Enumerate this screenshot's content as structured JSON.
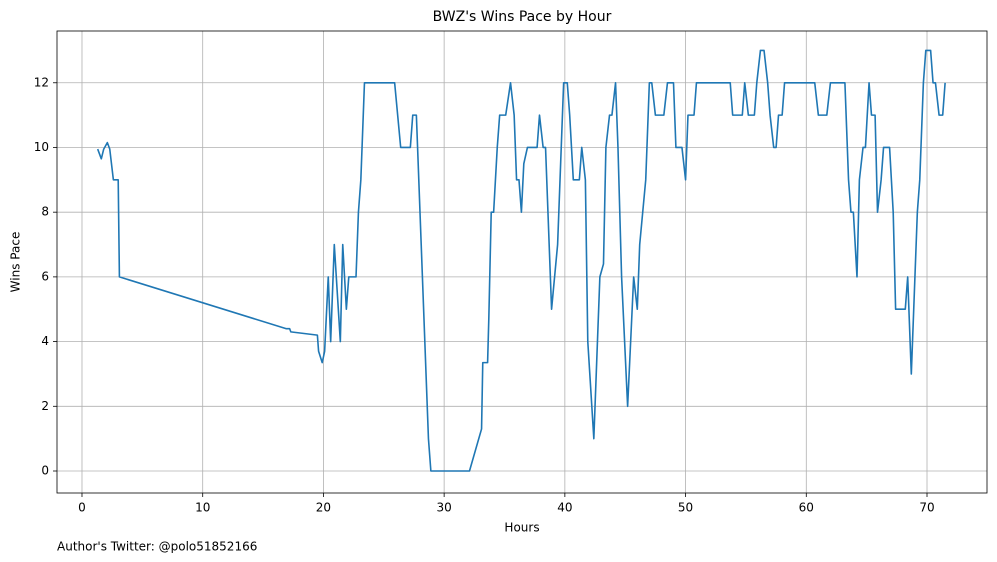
{
  "chart_data": {
    "type": "line",
    "title": "BWZ's Wins Pace by Hour",
    "x_label": "Hours",
    "y_label": "Wins Pace",
    "footnote": "Author's Twitter: @polo51852166",
    "xlim": [
      -2.07,
      74.97
    ],
    "ylim": [
      -0.68,
      13.6
    ],
    "xticks": [
      0,
      10,
      20,
      30,
      40,
      50,
      60,
      70
    ],
    "yticks": [
      0,
      2,
      4,
      6,
      8,
      10,
      12
    ],
    "grid": true,
    "series": [
      {
        "name": "Wins Pace",
        "color": "#1f77b4",
        "x": [
          1.3,
          1.6,
          1.8,
          2.1,
          2.3,
          2.6,
          3.0,
          3.1,
          16.9,
          17.2,
          17.3,
          19.5,
          19.6,
          19.9,
          20.1,
          20.4,
          20.6,
          20.9,
          21.4,
          21.6,
          21.9,
          22.1,
          22.7,
          22.9,
          23.1,
          23.4,
          25.9,
          26.4,
          27.2,
          27.4,
          27.7,
          28.1,
          28.7,
          28.9,
          32.1,
          33.1,
          33.2,
          33.6,
          33.7,
          33.9,
          34.1,
          34.4,
          34.6,
          35.1,
          35.5,
          35.8,
          36.0,
          36.2,
          36.4,
          36.6,
          36.9,
          37.7,
          37.9,
          38.2,
          38.4,
          38.6,
          38.9,
          39.4,
          39.9,
          40.2,
          40.4,
          40.7,
          41.2,
          41.4,
          41.7,
          41.9,
          42.4,
          42.9,
          43.2,
          43.4,
          43.7,
          43.9,
          44.2,
          44.4,
          44.7,
          45.2,
          45.7,
          46.0,
          46.2,
          46.7,
          47.0,
          47.2,
          47.5,
          48.2,
          48.5,
          49.0,
          49.2,
          49.7,
          50.0,
          50.2,
          50.7,
          50.9,
          53.7,
          53.9,
          54.7,
          54.9,
          55.2,
          55.7,
          55.9,
          56.2,
          56.5,
          56.8,
          57.0,
          57.3,
          57.5,
          57.7,
          58.0,
          58.2,
          60.7,
          61.0,
          61.7,
          62.0,
          63.2,
          63.5,
          63.7,
          63.9,
          64.2,
          64.4,
          64.7,
          64.9,
          65.2,
          65.4,
          65.7,
          65.9,
          66.2,
          66.4,
          66.9,
          67.2,
          67.4,
          68.2,
          68.4,
          68.7,
          68.9,
          69.2,
          69.4,
          69.7,
          69.9,
          70.3,
          70.5,
          70.7,
          71.0,
          71.3,
          71.5
        ],
        "values": [
          9.95,
          9.65,
          9.95,
          10.15,
          9.95,
          9.0,
          9.0,
          6.0,
          4.4,
          4.4,
          4.3,
          4.2,
          3.7,
          3.35,
          3.7,
          6.0,
          4.0,
          7.0,
          4.0,
          7.0,
          5.0,
          6.0,
          6.0,
          8.0,
          9.0,
          12.0,
          12.0,
          10.0,
          10.0,
          11.0,
          11.0,
          7.0,
          1.0,
          0,
          0,
          1.3,
          3.35,
          3.35,
          4.7,
          8.0,
          8.0,
          10.0,
          11.0,
          11.0,
          12.0,
          11.0,
          9.0,
          9.0,
          8.0,
          9.5,
          10.0,
          10.0,
          11.0,
          10.0,
          10.0,
          8.0,
          5.0,
          7.0,
          12.0,
          12.0,
          11.0,
          9.0,
          9.0,
          10.0,
          9.0,
          4.0,
          1.0,
          6.0,
          6.4,
          10.0,
          11.0,
          11.0,
          12.0,
          10.0,
          6.0,
          2.0,
          6.0,
          5.0,
          7.0,
          9.0,
          12.0,
          12.0,
          11.0,
          11.0,
          12.0,
          12.0,
          10.0,
          10.0,
          9.0,
          11.0,
          11.0,
          12.0,
          12.0,
          11.0,
          11.0,
          12.0,
          11.0,
          11.0,
          12.0,
          13.0,
          13.0,
          12.0,
          11.0,
          10.0,
          10.0,
          11.0,
          11.0,
          12.0,
          12.0,
          11.0,
          11.0,
          12.0,
          12.0,
          9.0,
          8.0,
          8.0,
          6.0,
          9.0,
          10.0,
          10.0,
          12.0,
          11.0,
          11.0,
          8.0,
          9.0,
          10.0,
          10.0,
          8.0,
          5.0,
          5.0,
          6.0,
          3.0,
          5.0,
          8.0,
          9.0,
          12.0,
          13.0,
          13.0,
          12.0,
          12.0,
          11.0,
          11.0,
          12.0
        ]
      }
    ]
  }
}
